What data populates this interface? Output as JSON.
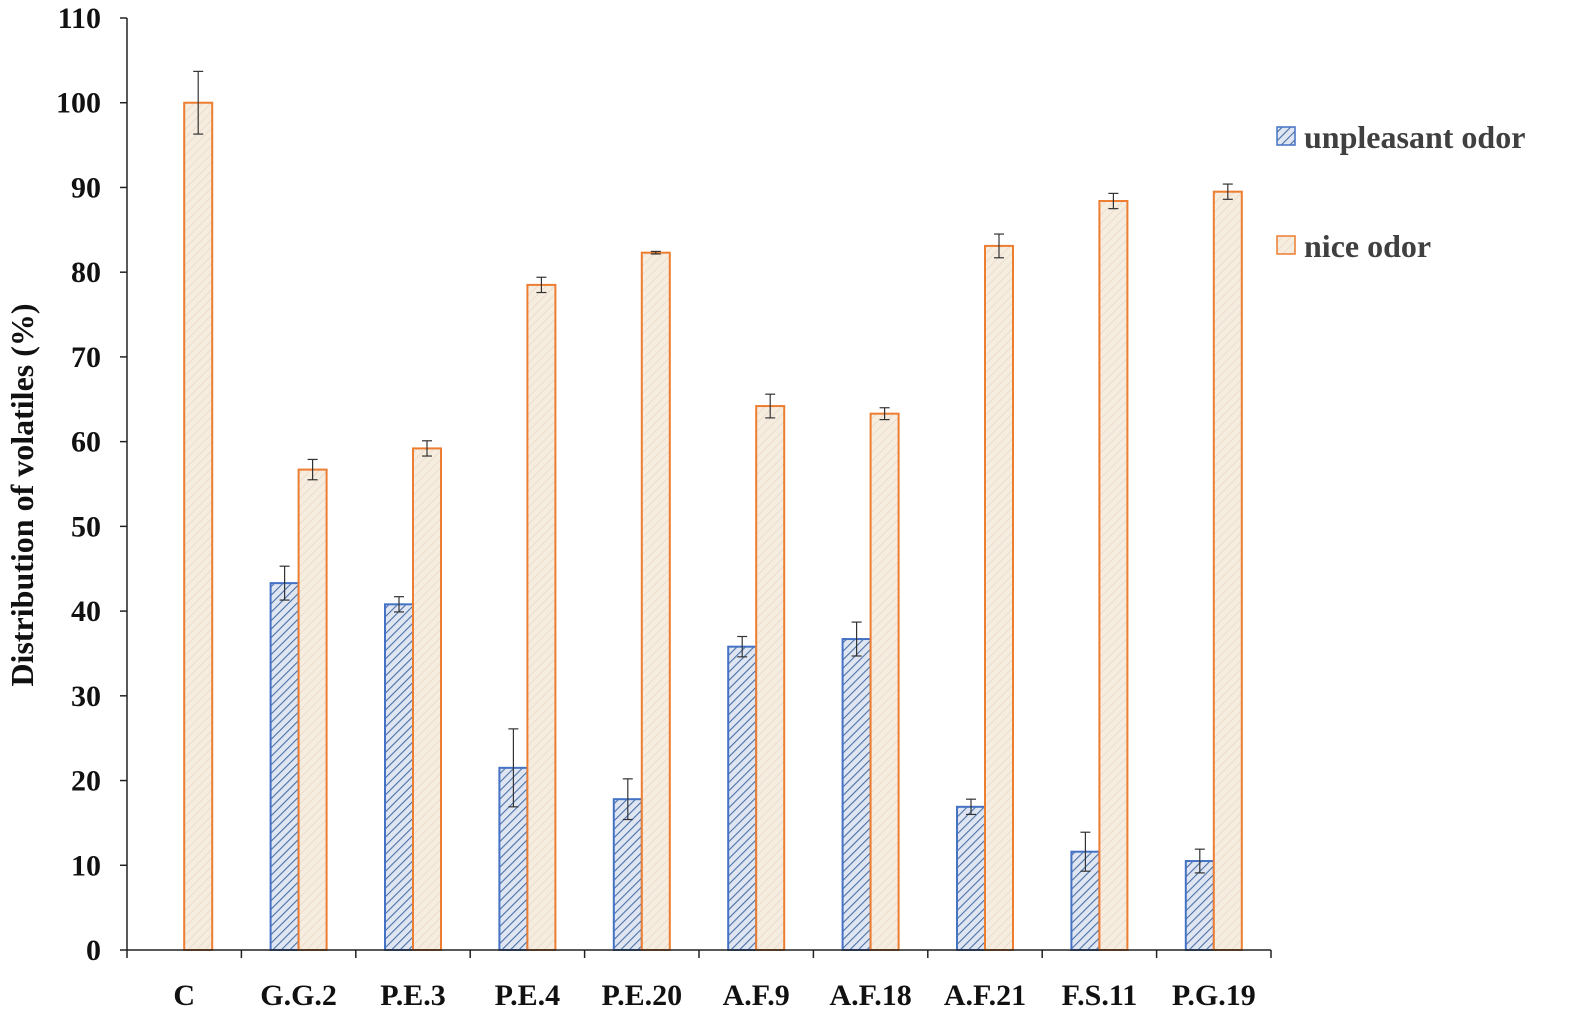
{
  "chart_data": {
    "type": "bar",
    "ylabel": "Distribution of volatiles (%)",
    "xlabel": "",
    "ylim": [
      0,
      110
    ],
    "yticks": [
      0,
      10,
      20,
      30,
      40,
      50,
      60,
      70,
      80,
      90,
      100,
      110
    ],
    "grid": false,
    "legend_position": "right",
    "categories": [
      "C",
      "G.G.2",
      "P.E.3",
      "P.E.4",
      "P.E.20",
      "A.F.9",
      "A.F.18",
      "A.F.21",
      "F.S.11",
      "P.G.19"
    ],
    "series": [
      {
        "name": "unpleasant odor",
        "color": "#4472C4",
        "fill": "hatched",
        "values": [
          null,
          43.3,
          40.8,
          21.5,
          17.8,
          35.8,
          36.7,
          16.9,
          11.6,
          10.5
        ],
        "errors": [
          null,
          2.0,
          0.9,
          4.6,
          2.4,
          1.2,
          2.0,
          0.9,
          2.3,
          1.4
        ]
      },
      {
        "name": "nice odor",
        "color": "#ED7D31",
        "fill": "light",
        "values": [
          100.0,
          56.7,
          59.2,
          78.5,
          82.3,
          64.2,
          63.3,
          83.1,
          88.4,
          89.5
        ],
        "errors": [
          3.7,
          1.2,
          0.9,
          0.9,
          0.15,
          1.4,
          0.7,
          1.4,
          0.9,
          0.9
        ]
      }
    ]
  }
}
